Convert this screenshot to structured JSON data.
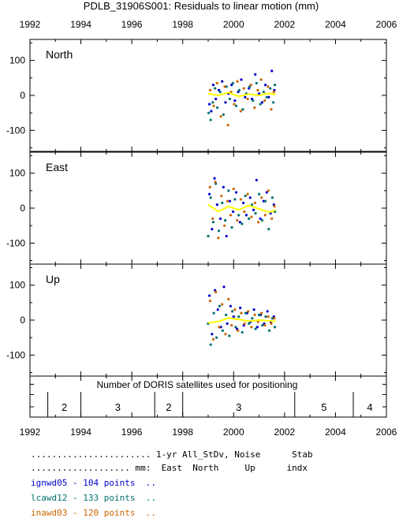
{
  "title": "PDLB_31906S001: Residuals to linear motion (mm)",
  "x_ticks": [
    "1992",
    "1994",
    "1996",
    "1998",
    "2000",
    "2002",
    "2004",
    "2006"
  ],
  "chart_data": [
    {
      "type": "scatter",
      "panel": "North",
      "xlim": [
        1992,
        2006
      ],
      "ylim": [
        -160,
        160
      ],
      "y_ticks": [
        "100",
        "0",
        "-100"
      ],
      "series": [
        {
          "name": "ignwd05",
          "color": "#0000cc",
          "x": [
            1999.05,
            1999.12,
            1999.2,
            1999.3,
            1999.42,
            1999.55,
            1999.68,
            1999.8,
            1999.92,
            2000.05,
            2000.18,
            2000.3,
            2000.45,
            2000.6,
            2000.72,
            2000.85,
            2001.0,
            2001.12,
            2001.25,
            2001.38,
            2001.5,
            2001.6
          ],
          "y": [
            -25,
            -45,
            30,
            -10,
            15,
            40,
            -20,
            5,
            30,
            -15,
            10,
            45,
            -5,
            20,
            -10,
            60,
            5,
            -20,
            30,
            -5,
            70,
            15
          ]
        },
        {
          "name": "lcawd12",
          "color": "#007070",
          "x": [
            1999.02,
            1999.1,
            1999.18,
            1999.27,
            1999.36,
            1999.47,
            1999.6,
            1999.72,
            1999.85,
            1999.97,
            2000.1,
            2000.22,
            2000.36,
            2000.5,
            2000.63,
            2000.76,
            2000.9,
            2001.05,
            2001.18,
            2001.3,
            2001.44,
            2001.56,
            2001.62
          ],
          "y": [
            -50,
            -70,
            -20,
            20,
            -35,
            10,
            -55,
            25,
            -10,
            35,
            -30,
            15,
            -40,
            5,
            25,
            -15,
            35,
            -25,
            10,
            -5,
            20,
            -20,
            30
          ]
        },
        {
          "name": "inawd03",
          "color": "#cc6600",
          "x": [
            1999.08,
            1999.22,
            1999.35,
            1999.5,
            1999.65,
            1999.78,
            1999.9,
            2000.02,
            2000.15,
            2000.28,
            2000.4,
            2000.55,
            2000.68,
            2000.82,
            2000.95,
            2001.08,
            2001.22,
            2001.35,
            2001.48,
            2001.58
          ],
          "y": [
            15,
            -30,
            35,
            -60,
            25,
            -85,
            10,
            -25,
            40,
            -45,
            20,
            -10,
            30,
            -35,
            15,
            45,
            -15,
            25,
            -40,
            10
          ]
        }
      ],
      "trend": {
        "x": [
          1999.0,
          1999.4,
          1999.8,
          2000.2,
          2000.6,
          2001.0,
          2001.4,
          2001.65
        ],
        "y": [
          5,
          0,
          8,
          -3,
          4,
          0,
          6,
          2
        ]
      }
    },
    {
      "type": "scatter",
      "panel": "East",
      "xlim": [
        1992,
        2006
      ],
      "ylim": [
        -160,
        160
      ],
      "y_ticks": [
        "100",
        "0",
        "-100"
      ],
      "series": [
        {
          "name": "ignwd05",
          "color": "#0000cc",
          "x": [
            1999.05,
            1999.15,
            1999.25,
            1999.35,
            1999.48,
            1999.6,
            1999.72,
            1999.85,
            1999.98,
            2000.1,
            2000.25,
            2000.38,
            2000.5,
            2000.65,
            2000.78,
            2000.9,
            2001.05,
            2001.18,
            2001.3,
            2001.45,
            2001.58
          ],
          "y": [
            40,
            -60,
            85,
            10,
            -30,
            60,
            -80,
            20,
            -10,
            45,
            -40,
            15,
            -20,
            30,
            -5,
            80,
            -30,
            20,
            45,
            -15,
            10
          ]
        },
        {
          "name": "lcawd12",
          "color": "#007070",
          "x": [
            1999.0,
            1999.1,
            1999.2,
            1999.3,
            1999.42,
            1999.55,
            1999.67,
            1999.8,
            1999.93,
            2000.05,
            2000.2,
            2000.33,
            2000.46,
            2000.6,
            2000.72,
            2000.86,
            2001.0,
            2001.12,
            2001.25,
            2001.38,
            2001.52,
            2001.62
          ],
          "y": [
            -80,
            30,
            -40,
            70,
            -65,
            15,
            -35,
            50,
            -55,
            25,
            -20,
            -45,
            35,
            -30,
            10,
            -15,
            40,
            -35,
            20,
            -60,
            30,
            -10
          ]
        },
        {
          "name": "inawd03",
          "color": "#cc6600",
          "x": [
            1999.07,
            1999.18,
            1999.28,
            1999.4,
            1999.52,
            1999.64,
            1999.76,
            1999.88,
            2000.0,
            2000.14,
            2000.28,
            2000.42,
            2000.55,
            2000.7,
            2000.84,
            2000.97,
            2001.1,
            2001.24,
            2001.36,
            2001.5,
            2001.6
          ],
          "y": [
            60,
            -30,
            75,
            -85,
            35,
            -50,
            20,
            -20,
            55,
            -35,
            25,
            -10,
            40,
            -25,
            15,
            -40,
            30,
            -20,
            50,
            -30,
            5
          ]
        }
      ],
      "trend": {
        "x": [
          1999.0,
          1999.4,
          1999.8,
          2000.2,
          2000.6,
          2001.0,
          2001.4,
          2001.65
        ],
        "y": [
          10,
          -10,
          5,
          -5,
          8,
          -2,
          -12,
          -5
        ]
      }
    },
    {
      "type": "scatter",
      "panel": "Up",
      "xlim": [
        1992,
        2006
      ],
      "ylim": [
        -160,
        160
      ],
      "y_ticks": [
        "100",
        "0",
        "-100"
      ],
      "series": [
        {
          "name": "ignwd05",
          "color": "#0000cc",
          "x": [
            1999.05,
            1999.15,
            1999.27,
            1999.38,
            1999.5,
            1999.62,
            1999.75,
            1999.88,
            2000.0,
            2000.13,
            2000.26,
            2000.4,
            2000.53,
            2000.66,
            2000.8,
            2000.93,
            2001.06,
            2001.2,
            2001.33,
            2001.46,
            2001.58
          ],
          "y": [
            70,
            -40,
            85,
            30,
            -20,
            95,
            -10,
            40,
            10,
            -25,
            35,
            -15,
            20,
            -5,
            30,
            -20,
            15,
            -10,
            25,
            -5,
            10
          ]
        },
        {
          "name": "lcawd12",
          "color": "#007070",
          "x": [
            1999.0,
            1999.1,
            1999.22,
            1999.33,
            1999.45,
            1999.57,
            1999.7,
            1999.83,
            1999.95,
            2000.08,
            2000.2,
            2000.34,
            2000.47,
            2000.6,
            2000.73,
            2000.86,
            2001.0,
            2001.13,
            2001.26,
            2001.4,
            2001.52,
            2001.62
          ],
          "y": [
            -10,
            -70,
            20,
            -50,
            40,
            -30,
            15,
            -45,
            25,
            -20,
            10,
            -35,
            20,
            -10,
            5,
            -25,
            15,
            -15,
            10,
            -30,
            5,
            -20
          ]
        },
        {
          "name": "inawd03",
          "color": "#cc6600",
          "x": [
            1999.08,
            1999.2,
            1999.3,
            1999.43,
            1999.55,
            1999.68,
            1999.8,
            1999.92,
            2000.05,
            2000.17,
            2000.3,
            2000.43,
            2000.57,
            2000.7,
            2000.83,
            2000.96,
            2001.1,
            2001.23,
            2001.36,
            2001.48,
            2001.6
          ],
          "y": [
            55,
            -55,
            80,
            -20,
            45,
            -40,
            60,
            -15,
            30,
            -30,
            20,
            -10,
            25,
            -20,
            15,
            -5,
            20,
            -15,
            10,
            -10,
            5
          ]
        }
      ],
      "trend": {
        "x": [
          1999.0,
          1999.4,
          1999.8,
          2000.2,
          2000.6,
          2001.0,
          2001.4,
          2001.65
        ],
        "y": [
          -8,
          -4,
          6,
          2,
          -3,
          0,
          -2,
          -4
        ]
      }
    }
  ],
  "satellites": {
    "label": "Number of DORIS satellites used for positioning",
    "segments": [
      {
        "count": "2",
        "x_start": 1992.7,
        "x_end": 1994.0
      },
      {
        "count": "3",
        "x_start": 1994.0,
        "x_end": 1996.9
      },
      {
        "count": "2",
        "x_start": 1996.9,
        "x_end": 1998.0
      },
      {
        "count": "3",
        "x_start": 1998.0,
        "x_end": 2002.4
      },
      {
        "count": "5",
        "x_start": 2002.4,
        "x_end": 2004.7
      },
      {
        "count": "4",
        "x_start": 2004.7,
        "x_end": 2006.0
      }
    ]
  },
  "legend": {
    "header1": "....................... 1-yr All_StDv, Noise      Stab",
    "header2": "................... mm:  East  North     Up      indx",
    "rows": [
      {
        "text": "ignwd05 - 104 points  ..",
        "color": "#0000cc"
      },
      {
        "text": "lcawd12 - 133 points  ..",
        "color": "#007070"
      },
      {
        "text": "inawd03 - 120 points  ..",
        "color": "#cc6600"
      }
    ]
  },
  "trend_color": "#ffff00"
}
